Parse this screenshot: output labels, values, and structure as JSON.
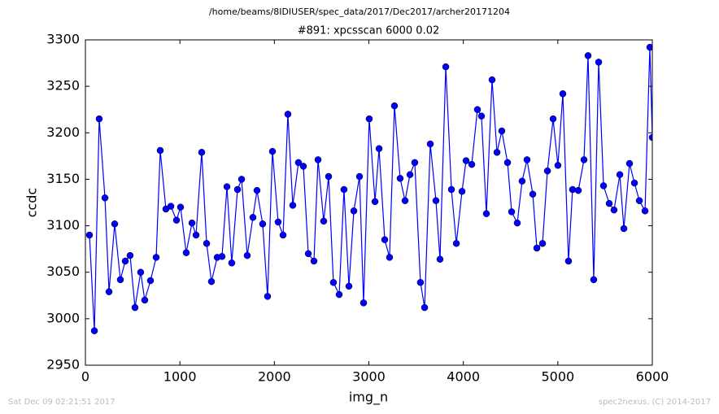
{
  "chart_data": {
    "type": "line",
    "suptitle": "/home/beams/8IDIUSER/spec_data/2017/Dec2017/archer20171204",
    "title": "#891: xpcsscan 6000 0.02",
    "xlabel": "img_n",
    "ylabel": "ccdc",
    "footer_left": "Sat Dec 09 02:21:51 2017",
    "footer_right": "spec2nexus, (C) 2014-2017",
    "xlim": [
      0,
      6000
    ],
    "xticks": [
      0,
      1000,
      2000,
      3000,
      4000,
      5000,
      6000
    ],
    "ylim": [
      2950,
      3300
    ],
    "yticks": [
      2950,
      3000,
      3050,
      3100,
      3150,
      3200,
      3250,
      3300
    ],
    "x": [
      43,
      95,
      146,
      207,
      250,
      310,
      370,
      422,
      473,
      525,
      585,
      628,
      689,
      749,
      792,
      852,
      904,
      964,
      1007,
      1067,
      1128,
      1171,
      1231,
      1283,
      1334,
      1395,
      1446,
      1498,
      1549,
      1610,
      1653,
      1713,
      1773,
      1816,
      1876,
      1928,
      1980,
      2040,
      2092,
      2143,
      2195,
      2255,
      2307,
      2359,
      2419,
      2462,
      2522,
      2574,
      2625,
      2686,
      2737,
      2789,
      2841,
      2901,
      2944,
      3004,
      3065,
      3108,
      3168,
      3219,
      3271,
      3331,
      3383,
      3435,
      3486,
      3546,
      3590,
      3650,
      3710,
      3753,
      3814,
      3874,
      3926,
      3986,
      4029,
      4089,
      4149,
      4192,
      4244,
      4304,
      4356,
      4407,
      4468,
      4511,
      4571,
      4622,
      4674,
      4735,
      4778,
      4838,
      4890,
      4950,
      5001,
      5053,
      5113,
      5156,
      5217,
      5277,
      5320,
      5380,
      5432,
      5484,
      5544,
      5595,
      5656,
      5699,
      5759,
      5811,
      5863,
      5923,
      5974,
      6000
    ],
    "series": [
      {
        "name": "ccdc",
        "color": "#0000ff",
        "values": [
          3090,
          2987,
          3215,
          3130,
          3029,
          3102,
          3042,
          3062,
          3068,
          3012,
          3050,
          3020,
          3041,
          3066,
          3181,
          3118,
          3121,
          3106,
          3120,
          3071,
          3103,
          3090,
          3179,
          3081,
          3040,
          3066,
          3067,
          3142,
          3060,
          3139,
          3150,
          3068,
          3109,
          3138,
          3102,
          3024,
          3180,
          3104,
          3090,
          3220,
          3122,
          3168,
          3164,
          3070,
          3062,
          3171,
          3105,
          3153,
          3039,
          3026,
          3139,
          3035,
          3116,
          3153,
          3017,
          3215,
          3126,
          3183,
          3085,
          3066,
          3229,
          3151,
          3127,
          3155,
          3168,
          3039,
          3012,
          3188,
          3127,
          3064,
          3271,
          3139,
          3081,
          3137,
          3170,
          3166,
          3225,
          3218,
          3113,
          3257,
          3179,
          3202,
          3168,
          3115,
          3103,
          3148,
          3171,
          3134,
          3076,
          3081,
          3159,
          3215,
          3165,
          3242,
          3062,
          3139,
          3138,
          3171,
          3283,
          3042,
          3276,
          3143,
          3124,
          3117,
          3155,
          3097,
          3167,
          3146,
          3127,
          3116,
          3292,
          3195
        ]
      }
    ]
  }
}
